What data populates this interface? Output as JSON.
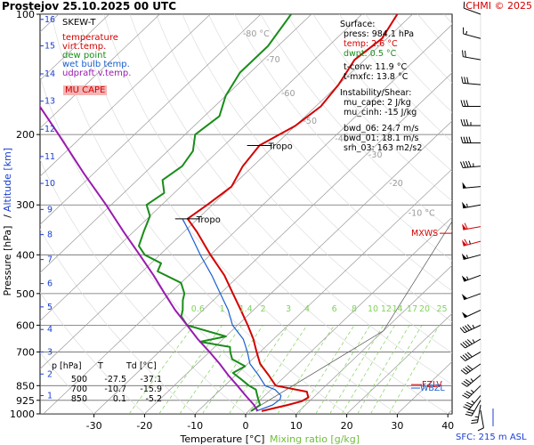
{
  "header": {
    "title": "Prostejov     25.10.2025 00 UTC",
    "credit": "CHMI © 2025"
  },
  "legend": {
    "heading": "SKEW-T",
    "items": [
      {
        "label": "temperature",
        "color": "#d40000"
      },
      {
        "label": "virt.temp.",
        "color": "#d40000"
      },
      {
        "label": "dew point",
        "color": "#1a8c1a"
      },
      {
        "label": "wet bulb temp.",
        "color": "#1a5fd0"
      },
      {
        "label": "udpraft v.temp.",
        "color": "#9a1ab0"
      }
    ],
    "mu_cape_label": "MU CAPE"
  },
  "info": {
    "surface_heading": "Surface:",
    "press": "press: 984.1 hPa",
    "temp": "temp: 2.6 °C",
    "dwpt": "dwpt: 0.5 °C",
    "tconv": "t-conv: 11.9 °C",
    "tmxfc": "t-mxfc: 13.8 °C",
    "instab_heading": "Instability/Shear:",
    "mu_cape": "mu_cape: 2 J/kg",
    "mu_cinh": "mu_cinh: -15 J/kg",
    "bwd_06": "bwd_06: 24.7 m/s",
    "bwd_01": "bwd_01: 18.1 m/s",
    "srh_03": "srh_03: 163 m2/s2"
  },
  "table": {
    "header": [
      "p [hPa]",
      "T",
      "Td [°C]"
    ],
    "rows": [
      [
        "500",
        "-27.5",
        "-37.1"
      ],
      [
        "700",
        "-10.7",
        "-15.9"
      ],
      [
        "850",
        "0.1",
        "-5.2"
      ]
    ]
  },
  "sfc_label": "SFC: 215 m ASL",
  "colors": {
    "temperature": "#d40000",
    "dewpoint": "#1a8c1a",
    "wetbulb": "#1a5fd0",
    "parcel": "#9a1ab0",
    "mixing": "#7fd35a",
    "isotherm": "#9a9a9a",
    "pressure_line": "#6a6a6a",
    "wind": "#000000",
    "credit": "#d40000",
    "sfc": "#1a3fd0"
  },
  "chart_data": {
    "type": "line",
    "xlabel": "Temperature [°C]",
    "xlabel_extra": "Mixing ratio [g/kg]",
    "ylabel": "Pressure [hPa]",
    "ylabel_extra": "Altitude [km]",
    "xlim": [
      -35,
      45
    ],
    "ylim": [
      1000,
      100
    ],
    "y_scale": "log",
    "x_ticks": [
      -30,
      -20,
      -10,
      0,
      10,
      20,
      30,
      40
    ],
    "pressure_ticks": [
      100,
      200,
      300,
      400,
      500,
      600,
      700,
      850,
      925,
      1000
    ],
    "altitude_ticks": [
      {
        "km": 1,
        "p": 900
      },
      {
        "km": 2,
        "p": 795
      },
      {
        "km": 3,
        "p": 700
      },
      {
        "km": 4,
        "p": 615
      },
      {
        "km": 5,
        "p": 540
      },
      {
        "km": 6,
        "p": 472
      },
      {
        "km": 7,
        "p": 411
      },
      {
        "km": 8,
        "p": 356
      },
      {
        "km": 9,
        "p": 308
      },
      {
        "km": 10,
        "p": 265
      },
      {
        "km": 11,
        "p": 227
      },
      {
        "km": 12,
        "p": 194
      },
      {
        "km": 13,
        "p": 165
      },
      {
        "km": 14,
        "p": 141
      },
      {
        "km": 15,
        "p": 120
      },
      {
        "km": 16,
        "p": 103
      }
    ],
    "isotherm_labels": [
      {
        "temp": -80,
        "text": "-80 °C",
        "p": 112
      },
      {
        "temp": -70,
        "text": "-70",
        "p": 130
      },
      {
        "temp": -60,
        "text": "-60",
        "p": 158
      },
      {
        "temp": -50,
        "text": "-50",
        "p": 185
      },
      {
        "temp": -40,
        "text": "-40",
        "p": 205
      },
      {
        "temp": -30,
        "text": "-30",
        "p": 225
      },
      {
        "temp": -20,
        "text": "-20",
        "p": 265
      },
      {
        "temp": -10,
        "text": "-10 °C",
        "p": 315
      }
    ],
    "mixing_ratio_labels": [
      "0.6",
      "1",
      "1.4",
      "2",
      "3",
      "4",
      "6",
      "8",
      "10",
      "12",
      "14",
      "17",
      "20",
      "25"
    ],
    "mixing_ratio_values": [
      0.6,
      1,
      1.4,
      2,
      3,
      4,
      6,
      8,
      10,
      12,
      14,
      17,
      20,
      25
    ],
    "level_labels": [
      {
        "text": "Tropo",
        "p": 213
      },
      {
        "text": "Tropo",
        "p": 325
      },
      {
        "text": "MXWS",
        "p": 370
      },
      {
        "text": "FZLV",
        "p": 845
      },
      {
        "text": "WBZL",
        "p": 862
      }
    ],
    "series": [
      {
        "name": "temperature",
        "points": [
          [
            984,
            2.6
          ],
          [
            950,
            6.5
          ],
          [
            930,
            8.5
          ],
          [
            910,
            9.0
          ],
          [
            880,
            7.5
          ],
          [
            850,
            0.1
          ],
          [
            800,
            -3.5
          ],
          [
            750,
            -7.5
          ],
          [
            700,
            -10.7
          ],
          [
            650,
            -14
          ],
          [
            600,
            -18
          ],
          [
            550,
            -22.5
          ],
          [
            500,
            -27.5
          ],
          [
            450,
            -33
          ],
          [
            400,
            -40
          ],
          [
            350,
            -47.5
          ],
          [
            325,
            -52
          ],
          [
            300,
            -51
          ],
          [
            270,
            -50
          ],
          [
            240,
            -52
          ],
          [
            213,
            -53
          ],
          [
            190,
            -50
          ],
          [
            170,
            -49
          ],
          [
            150,
            -50
          ],
          [
            130,
            -52
          ],
          [
            115,
            -51
          ],
          [
            100,
            -53
          ]
        ]
      },
      {
        "name": "dew point",
        "points": [
          [
            984,
            0.5
          ],
          [
            950,
            1
          ],
          [
            920,
            -0.5
          ],
          [
            900,
            -1.5
          ],
          [
            870,
            -3
          ],
          [
            850,
            -5.2
          ],
          [
            820,
            -8
          ],
          [
            790,
            -11
          ],
          [
            760,
            -10
          ],
          [
            730,
            -14
          ],
          [
            700,
            -15.9
          ],
          [
            680,
            -17
          ],
          [
            660,
            -24
          ],
          [
            640,
            -20
          ],
          [
            600,
            -30
          ],
          [
            570,
            -33
          ],
          [
            550,
            -34
          ],
          [
            520,
            -36
          ],
          [
            500,
            -37.1
          ],
          [
            470,
            -40
          ],
          [
            440,
            -47
          ],
          [
            420,
            -48
          ],
          [
            400,
            -53
          ],
          [
            380,
            -56
          ],
          [
            350,
            -58
          ],
          [
            320,
            -60
          ],
          [
            300,
            -63
          ],
          [
            280,
            -62
          ],
          [
            260,
            -65
          ],
          [
            240,
            -64
          ],
          [
            220,
            -65
          ],
          [
            200,
            -68
          ],
          [
            180,
            -67
          ],
          [
            160,
            -70
          ],
          [
            140,
            -72
          ],
          [
            120,
            -72
          ],
          [
            100,
            -74
          ]
        ]
      },
      {
        "name": "wet bulb temp.",
        "points": [
          [
            984,
            1.5
          ],
          [
            950,
            3.5
          ],
          [
            920,
            3.8
          ],
          [
            900,
            3.2
          ],
          [
            870,
            0.8
          ],
          [
            850,
            -2.0
          ],
          [
            800,
            -5.5
          ],
          [
            750,
            -9.5
          ],
          [
            700,
            -12.5
          ],
          [
            650,
            -16
          ],
          [
            600,
            -21
          ],
          [
            550,
            -25
          ],
          [
            500,
            -30
          ],
          [
            450,
            -35.5
          ],
          [
            400,
            -42
          ],
          [
            350,
            -49
          ],
          [
            325,
            -53
          ]
        ]
      },
      {
        "name": "udpraft v.temp.",
        "points": [
          [
            984,
            1.8
          ],
          [
            950,
            -0.2
          ],
          [
            900,
            -3.8
          ],
          [
            850,
            -7.5
          ],
          [
            800,
            -11.5
          ],
          [
            750,
            -15.5
          ],
          [
            700,
            -20
          ],
          [
            650,
            -25
          ],
          [
            600,
            -30
          ],
          [
            550,
            -35.5
          ],
          [
            500,
            -41
          ],
          [
            450,
            -47
          ],
          [
            400,
            -54
          ],
          [
            350,
            -62
          ],
          [
            300,
            -71
          ],
          [
            250,
            -82
          ],
          [
            200,
            -95
          ],
          [
            150,
            -112
          ],
          [
            100,
            -137
          ]
        ]
      }
    ],
    "wind_barbs": [
      {
        "p": 980,
        "dir": 170,
        "spd": 10
      },
      {
        "p": 950,
        "dir": 190,
        "spd": 25
      },
      {
        "p": 925,
        "dir": 210,
        "spd": 30
      },
      {
        "p": 900,
        "dir": 220,
        "spd": 35
      },
      {
        "p": 850,
        "dir": 225,
        "spd": 35
      },
      {
        "p": 800,
        "dir": 230,
        "spd": 35
      },
      {
        "p": 750,
        "dir": 235,
        "spd": 40
      },
      {
        "p": 700,
        "dir": 240,
        "spd": 40
      },
      {
        "p": 650,
        "dir": 240,
        "spd": 45
      },
      {
        "p": 600,
        "dir": 245,
        "spd": 45
      },
      {
        "p": 550,
        "dir": 245,
        "spd": 50
      },
      {
        "p": 500,
        "dir": 250,
        "spd": 50
      },
      {
        "p": 450,
        "dir": 250,
        "spd": 55
      },
      {
        "p": 400,
        "dir": 255,
        "spd": 55
      },
      {
        "p": 370,
        "dir": 255,
        "spd": 65
      },
      {
        "p": 340,
        "dir": 260,
        "spd": 60
      },
      {
        "p": 300,
        "dir": 260,
        "spd": 55
      },
      {
        "p": 270,
        "dir": 265,
        "spd": 50
      },
      {
        "p": 240,
        "dir": 265,
        "spd": 45
      },
      {
        "p": 210,
        "dir": 270,
        "spd": 40
      },
      {
        "p": 190,
        "dir": 270,
        "spd": 35
      },
      {
        "p": 170,
        "dir": 270,
        "spd": 30
      },
      {
        "p": 150,
        "dir": 275,
        "spd": 30
      },
      {
        "p": 130,
        "dir": 280,
        "spd": 20
      },
      {
        "p": 115,
        "dir": 285,
        "spd": 15
      },
      {
        "p": 100,
        "dir": 290,
        "spd": 10
      }
    ]
  }
}
